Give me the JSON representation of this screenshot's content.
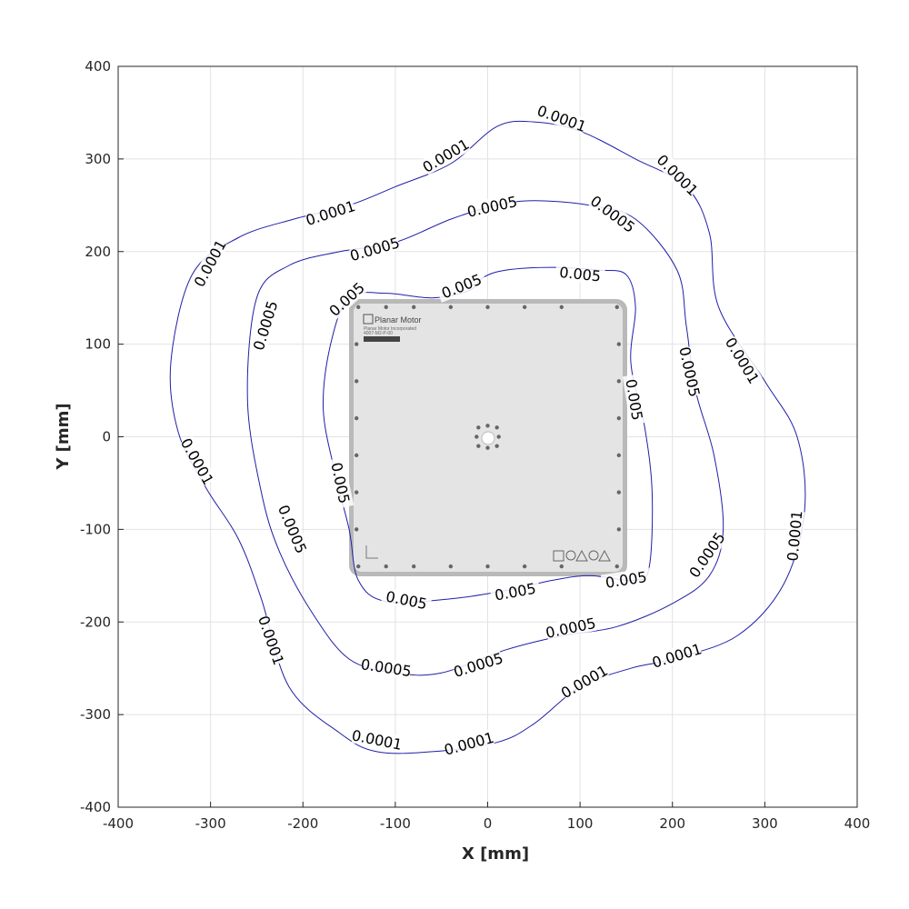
{
  "chart_data": {
    "type": "contour",
    "xlabel": "X [mm]",
    "ylabel": "Y [mm]",
    "xlim": [
      -400,
      400
    ],
    "ylim": [
      -400,
      400
    ],
    "xticks": [
      -400,
      -300,
      -200,
      -100,
      0,
      100,
      200,
      300,
      400
    ],
    "yticks": [
      -400,
      -300,
      -200,
      -100,
      0,
      100,
      200,
      300,
      400
    ],
    "grid": true,
    "line_color": "#1f1fa8",
    "contours": [
      {
        "level": "0.0001",
        "points": [
          [
            50,
            340
          ],
          [
            100,
            330
          ],
          [
            160,
            300
          ],
          [
            215,
            270
          ],
          [
            240,
            220
          ],
          [
            250,
            140
          ],
          [
            300,
            60
          ],
          [
            335,
            0
          ],
          [
            343,
            -80
          ],
          [
            320,
            -160
          ],
          [
            270,
            -215
          ],
          [
            200,
            -240
          ],
          [
            155,
            -250
          ],
          [
            100,
            -270
          ],
          [
            50,
            -310
          ],
          [
            10,
            -330
          ],
          [
            -60,
            -340
          ],
          [
            -120,
            -340
          ],
          [
            -160,
            -320
          ],
          [
            -215,
            -270
          ],
          [
            -245,
            -175
          ],
          [
            -270,
            -110
          ],
          [
            -305,
            -55
          ],
          [
            -335,
            5
          ],
          [
            -343,
            80
          ],
          [
            -320,
            175
          ],
          [
            -270,
            215
          ],
          [
            -210,
            235
          ],
          [
            -150,
            250
          ],
          [
            -100,
            270
          ],
          [
            -40,
            295
          ],
          [
            10,
            335
          ]
        ],
        "labels": [
          {
            "text": "0.0001",
            "at": [
              80,
              343
            ]
          },
          {
            "text": "0.0001",
            "at": [
              -45,
              303
            ]
          },
          {
            "text": "0.0001",
            "at": [
              205,
              282
            ]
          },
          {
            "text": "0.0001",
            "at": [
              -170,
              241
            ]
          },
          {
            "text": "0.0001",
            "at": [
              -300,
              187
            ]
          },
          {
            "text": "0.0001",
            "at": [
              275,
              82
            ]
          },
          {
            "text": "0.0001",
            "at": [
              -315,
              -27
            ]
          },
          {
            "text": "0.0001",
            "at": [
              333,
              -107
            ]
          },
          {
            "text": "0.0001",
            "at": [
              -235,
              -220
            ]
          },
          {
            "text": "0.0001",
            "at": [
              205,
              -237
            ]
          },
          {
            "text": "0.0001",
            "at": [
              105,
              -265
            ]
          },
          {
            "text": "0.0001",
            "at": [
              -120,
              -328
            ]
          },
          {
            "text": "0.0001",
            "at": [
              -20,
              -332
            ]
          }
        ]
      },
      {
        "level": "0.0005",
        "points": [
          [
            50,
            255
          ],
          [
            110,
            250
          ],
          [
            160,
            235
          ],
          [
            205,
            180
          ],
          [
            215,
            120
          ],
          [
            225,
            50
          ],
          [
            245,
            -20
          ],
          [
            255,
            -100
          ],
          [
            240,
            -150
          ],
          [
            200,
            -180
          ],
          [
            140,
            -205
          ],
          [
            80,
            -215
          ],
          [
            20,
            -230
          ],
          [
            -50,
            -255
          ],
          [
            -100,
            -255
          ],
          [
            -150,
            -240
          ],
          [
            -190,
            -190
          ],
          [
            -225,
            -125
          ],
          [
            -245,
            -60
          ],
          [
            -260,
            40
          ],
          [
            -250,
            150
          ],
          [
            -215,
            185
          ],
          [
            -160,
            200
          ],
          [
            -100,
            210
          ],
          [
            -40,
            235
          ],
          [
            10,
            250
          ]
        ],
        "labels": [
          {
            "text": "0.0005",
            "at": [
              5,
              248
            ]
          },
          {
            "text": "0.0005",
            "at": [
              135,
              240
            ]
          },
          {
            "text": "0.0005",
            "at": [
              -122,
              202
            ]
          },
          {
            "text": "0.0005",
            "at": [
              -240,
              120
            ]
          },
          {
            "text": "0.0005",
            "at": [
              218,
              70
            ]
          },
          {
            "text": "0.0005",
            "at": [
              -212,
              -100
            ]
          },
          {
            "text": "0.0005",
            "at": [
              238,
              -128
            ]
          },
          {
            "text": "0.0005",
            "at": [
              90,
              -207
            ]
          },
          {
            "text": "0.0005",
            "at": [
              -110,
              -250
            ]
          },
          {
            "text": "0.0005",
            "at": [
              -10,
              -247
            ]
          }
        ]
      },
      {
        "level": "0.005",
        "points": [
          [
            20,
            180
          ],
          [
            70,
            183
          ],
          [
            120,
            180
          ],
          [
            150,
            175
          ],
          [
            160,
            140
          ],
          [
            155,
            80
          ],
          [
            170,
            10
          ],
          [
            178,
            -60
          ],
          [
            175,
            -140
          ],
          [
            160,
            -155
          ],
          [
            110,
            -150
          ],
          [
            70,
            -155
          ],
          [
            25,
            -165
          ],
          [
            -40,
            -175
          ],
          [
            -110,
            -178
          ],
          [
            -140,
            -155
          ],
          [
            -150,
            -100
          ],
          [
            -165,
            -40
          ],
          [
            -178,
            30
          ],
          [
            -170,
            100
          ],
          [
            -150,
            150
          ],
          [
            -110,
            155
          ],
          [
            -60,
            150
          ],
          [
            -20,
            158
          ],
          [
            -5,
            172
          ]
        ],
        "labels": [
          {
            "text": "0.005",
            "at": [
              100,
              175
            ]
          },
          {
            "text": "0.005",
            "at": [
              -28,
              162
            ]
          },
          {
            "text": "0.005",
            "at": [
              -152,
              148
            ]
          },
          {
            "text": "0.005",
            "at": [
              158,
              40
            ]
          },
          {
            "text": "0.005",
            "at": [
              -160,
              -50
            ]
          },
          {
            "text": "0.005",
            "at": [
              150,
              -155
            ]
          },
          {
            "text": "0.005",
            "at": [
              30,
              -168
            ]
          },
          {
            "text": "0.005",
            "at": [
              -88,
              -177
            ]
          }
        ]
      }
    ]
  },
  "plate": {
    "brand": "Planar Motor",
    "label": "Planar Motor Incorporated",
    "model": "4007-M2-P-00"
  }
}
